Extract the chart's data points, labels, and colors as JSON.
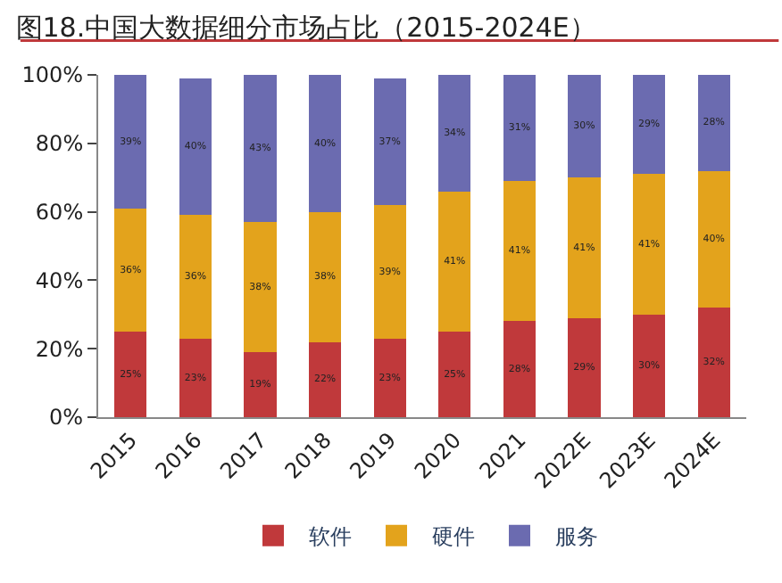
{
  "chart_data": {
    "type": "bar",
    "title": "图18.中国大数据细分市场占比（2015-2024E）",
    "stacked": true,
    "categories": [
      "2015",
      "2016",
      "2017",
      "2018",
      "2019",
      "2020",
      "2021",
      "2022E",
      "2023E",
      "2024E"
    ],
    "series": [
      {
        "name": "软件",
        "color": "#c0393b",
        "values": [
          25,
          23,
          19,
          22,
          23,
          25,
          28,
          29,
          30,
          32
        ],
        "value_labels": [
          "25%",
          "23%",
          "19%",
          "22%",
          "23%",
          "25%",
          "28%",
          "29%",
          "30%",
          "32%"
        ]
      },
      {
        "name": "硬件",
        "color": "#e3a31c",
        "values": [
          36,
          36,
          38,
          38,
          39,
          41,
          41,
          41,
          41,
          40
        ],
        "value_labels": [
          "36%",
          "36%",
          "38%",
          "38%",
          "39%",
          "41%",
          "41%",
          "41%",
          "41%",
          "40%"
        ]
      },
      {
        "name": "服务",
        "color": "#6b6bb0",
        "values": [
          39,
          40,
          43,
          40,
          37,
          34,
          31,
          30,
          29,
          28
        ],
        "value_labels": [
          "39%",
          "40%",
          "43%",
          "40%",
          "37%",
          "34%",
          "31%",
          "30%",
          "29%",
          "28%"
        ]
      }
    ],
    "ylim": [
      0,
      100
    ],
    "yticks": [
      {
        "value": 0,
        "label": "0%"
      },
      {
        "value": 20,
        "label": "20%"
      },
      {
        "value": 40,
        "label": "40%"
      },
      {
        "value": 60,
        "label": "60%"
      },
      {
        "value": 80,
        "label": "80%"
      },
      {
        "value": 100,
        "label": "100%"
      }
    ],
    "legend": "bottom"
  }
}
